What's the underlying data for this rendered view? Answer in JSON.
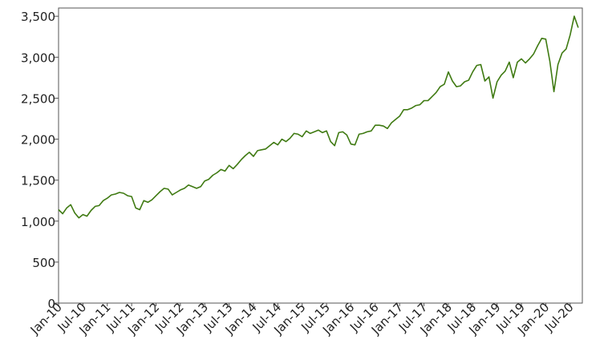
{
  "chart_data": {
    "type": "line",
    "title": "",
    "xlabel": "",
    "ylabel": "",
    "grid": false,
    "ylim": [
      0,
      3600
    ],
    "y_ticks": [
      0,
      500,
      1000,
      1500,
      2000,
      2500,
      3000,
      3500
    ],
    "y_tick_labels": [
      "0",
      "500",
      "1,000",
      "1,500",
      "2,000",
      "2,500",
      "3,000",
      "3,500"
    ],
    "x_range": [
      "2010-01",
      "2020-10"
    ],
    "x_ticks": [
      "2010-01",
      "2010-07",
      "2011-01",
      "2011-07",
      "2012-01",
      "2012-07",
      "2013-01",
      "2013-07",
      "2014-01",
      "2014-07",
      "2015-01",
      "2015-07",
      "2016-01",
      "2016-07",
      "2017-01",
      "2017-07",
      "2018-01",
      "2018-07",
      "2019-01",
      "2019-07",
      "2020-01",
      "2020-07"
    ],
    "x_tick_labels": [
      "Jan-10",
      "Jul-10",
      "Jan-11",
      "Jul-11",
      "Jan-12",
      "Jul-12",
      "Jan-13",
      "Jul-13",
      "Jan-14",
      "Jul-14",
      "Jan-15",
      "Jul-15",
      "Jan-16",
      "Jul-16",
      "Jan-17",
      "Jul-17",
      "Jan-18",
      "Jul-18",
      "Jan-19",
      "Jul-19",
      "Jan-20",
      "Jul-20"
    ],
    "colors": {
      "series": "#3f7a12"
    },
    "series": [
      {
        "name": "",
        "x": [
          "2010-01",
          "2010-02",
          "2010-03",
          "2010-04",
          "2010-05",
          "2010-06",
          "2010-07",
          "2010-08",
          "2010-09",
          "2010-10",
          "2010-11",
          "2010-12",
          "2011-01",
          "2011-02",
          "2011-03",
          "2011-04",
          "2011-05",
          "2011-06",
          "2011-07",
          "2011-08",
          "2011-09",
          "2011-10",
          "2011-11",
          "2011-12",
          "2012-01",
          "2012-02",
          "2012-03",
          "2012-04",
          "2012-05",
          "2012-06",
          "2012-07",
          "2012-08",
          "2012-09",
          "2012-10",
          "2012-11",
          "2012-12",
          "2013-01",
          "2013-02",
          "2013-03",
          "2013-04",
          "2013-05",
          "2013-06",
          "2013-07",
          "2013-08",
          "2013-09",
          "2013-10",
          "2013-11",
          "2013-12",
          "2014-01",
          "2014-02",
          "2014-03",
          "2014-04",
          "2014-05",
          "2014-06",
          "2014-07",
          "2014-08",
          "2014-09",
          "2014-10",
          "2014-11",
          "2014-12",
          "2015-01",
          "2015-02",
          "2015-03",
          "2015-04",
          "2015-05",
          "2015-06",
          "2015-07",
          "2015-08",
          "2015-09",
          "2015-10",
          "2015-11",
          "2015-12",
          "2016-01",
          "2016-02",
          "2016-03",
          "2016-04",
          "2016-05",
          "2016-06",
          "2016-07",
          "2016-08",
          "2016-09",
          "2016-10",
          "2016-11",
          "2016-12",
          "2017-01",
          "2017-02",
          "2017-03",
          "2017-04",
          "2017-05",
          "2017-06",
          "2017-07",
          "2017-08",
          "2017-09",
          "2017-10",
          "2017-11",
          "2017-12",
          "2018-01",
          "2018-02",
          "2018-03",
          "2018-04",
          "2018-05",
          "2018-06",
          "2018-07",
          "2018-08",
          "2018-09",
          "2018-10",
          "2018-11",
          "2018-12",
          "2019-01",
          "2019-02",
          "2019-03",
          "2019-04",
          "2019-05",
          "2019-06",
          "2019-07",
          "2019-08",
          "2019-09",
          "2019-10",
          "2019-11",
          "2019-12",
          "2020-01",
          "2020-02",
          "2020-03",
          "2020-04",
          "2020-05",
          "2020-06",
          "2020-07",
          "2020-08",
          "2020-09"
        ],
        "values": [
          1140,
          1090,
          1160,
          1200,
          1100,
          1040,
          1080,
          1060,
          1130,
          1180,
          1190,
          1250,
          1280,
          1320,
          1330,
          1350,
          1340,
          1310,
          1300,
          1160,
          1140,
          1250,
          1230,
          1260,
          1310,
          1360,
          1400,
          1390,
          1320,
          1350,
          1380,
          1400,
          1440,
          1420,
          1400,
          1420,
          1490,
          1510,
          1560,
          1590,
          1630,
          1610,
          1680,
          1640,
          1690,
          1750,
          1800,
          1840,
          1790,
          1860,
          1870,
          1880,
          1920,
          1960,
          1930,
          2000,
          1970,
          2010,
          2070,
          2060,
          2030,
          2100,
          2070,
          2090,
          2110,
          2080,
          2100,
          1970,
          1920,
          2080,
          2090,
          2050,
          1940,
          1930,
          2060,
          2070,
          2090,
          2100,
          2170,
          2170,
          2160,
          2130,
          2200,
          2240,
          2280,
          2360,
          2360,
          2380,
          2410,
          2420,
          2470,
          2470,
          2520,
          2570,
          2640,
          2670,
          2820,
          2710,
          2640,
          2650,
          2700,
          2720,
          2820,
          2900,
          2910,
          2710,
          2760,
          2500,
          2700,
          2780,
          2830,
          2940,
          2750,
          2940,
          2980,
          2930,
          2980,
          3040,
          3140,
          3230,
          3220,
          2950,
          2580,
          2910,
          3050,
          3100,
          3270,
          3500,
          3360
        ]
      }
    ]
  }
}
